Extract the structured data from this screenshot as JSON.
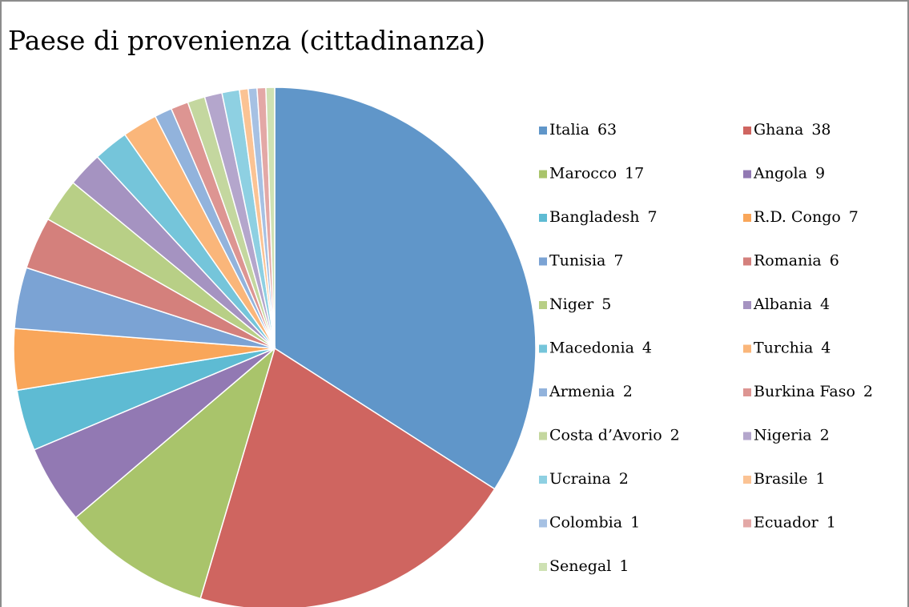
{
  "chart_data": {
    "type": "pie",
    "title": "Paese di provenienza (cittadinanza)",
    "categories": [
      "Italia",
      "Ghana",
      "Marocco",
      "Angola",
      "Bangladesh",
      "R.D. Congo",
      "Tunisia",
      "Romania",
      "Niger",
      "Albania",
      "Macedonia",
      "Turchia",
      "Armenia",
      "Burkina Faso",
      "Costa d’Avorio",
      "Nigeria",
      "Ucraina",
      "Brasile",
      "Colombia",
      "Ecuador",
      "Senegal"
    ],
    "values": [
      63,
      38,
      17,
      9,
      7,
      7,
      7,
      6,
      5,
      4,
      4,
      4,
      2,
      2,
      2,
      2,
      2,
      1,
      1,
      1,
      1
    ],
    "colors": [
      "#6096c9",
      "#cf6560",
      "#a9c46b",
      "#9279b3",
      "#5ebbd3",
      "#f9a65a",
      "#7ba3d4",
      "#d4807c",
      "#b8cf86",
      "#a593c1",
      "#75c5da",
      "#fab67a",
      "#92b3dc",
      "#dd9592",
      "#c4d79f",
      "#b4a6cc",
      "#8ed0e2",
      "#fbc394",
      "#a6c1e3",
      "#e3a8a6",
      "#cee1b3"
    ],
    "legend": "right"
  }
}
